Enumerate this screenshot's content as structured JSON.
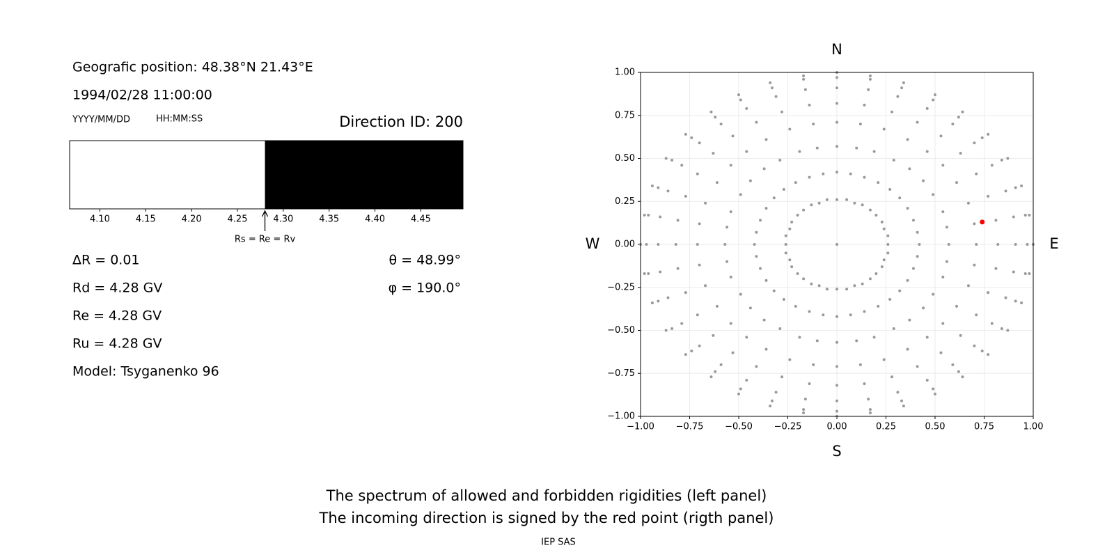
{
  "panel": {
    "position": "Geografic position: 48.38°N 21.43°E",
    "datetime": "1994/02/28 11:00:00",
    "date_format": "YYYY/MM/DD",
    "time_format": "HH:MM:SS",
    "direction_id": "Direction ID: 200",
    "delta_r": "ΔR = 0.01",
    "rd": "Rd = 4.28 GV",
    "re": "Re = 4.28 GV",
    "ru": "Ru = 4.28 GV",
    "model": "Model: Tsyganenko 96",
    "theta": "θ = 48.99°",
    "phi": "φ = 190.0°"
  },
  "chart_data": [
    {
      "type": "spectrum",
      "xlim": [
        4.067,
        4.496
      ],
      "threshold": 4.28,
      "colors": [
        "#ffffff",
        "#000000"
      ],
      "annotation": "Rs = Re = Rv",
      "xticks": [
        {
          "value": 4.1,
          "label": "4.10"
        },
        {
          "value": 4.15,
          "label": "4.15"
        },
        {
          "value": 4.2,
          "label": "4.20"
        },
        {
          "value": 4.25,
          "label": "4.25"
        },
        {
          "value": 4.3,
          "label": "4.30"
        },
        {
          "value": 4.35,
          "label": "4.35"
        },
        {
          "value": 4.4,
          "label": "4.40"
        },
        {
          "value": 4.45,
          "label": "4.45"
        }
      ]
    },
    {
      "type": "scatter",
      "xlim": [
        -1,
        1
      ],
      "ylim": [
        -1,
        1
      ],
      "grid": true,
      "directions": {
        "north": "N",
        "south": "S",
        "west": "W",
        "east": "E"
      },
      "xticks": [
        {
          "value": -1,
          "label": "−1.00"
        },
        {
          "value": -0.75,
          "label": "−0.75"
        },
        {
          "value": -0.5,
          "label": "−0.50"
        },
        {
          "value": -0.25,
          "label": "−0.25"
        },
        {
          "value": 0,
          "label": "0.00"
        },
        {
          "value": 0.25,
          "label": "0.25"
        },
        {
          "value": 0.5,
          "label": "0.50"
        },
        {
          "value": 0.75,
          "label": "0.75"
        },
        {
          "value": 1,
          "label": "1.00"
        }
      ],
      "yticks": [
        {
          "value": -1,
          "label": "−1.00"
        },
        {
          "value": -0.75,
          "label": "−0.75"
        },
        {
          "value": -0.5,
          "label": "−0.50"
        },
        {
          "value": -0.25,
          "label": "−0.25"
        },
        {
          "value": 0,
          "label": "0.00"
        },
        {
          "value": 0.25,
          "label": "0.25"
        },
        {
          "value": 0.5,
          "label": "0.50"
        },
        {
          "value": 0.75,
          "label": "0.75"
        },
        {
          "value": 1,
          "label": "1.00"
        }
      ],
      "series": [
        {
          "color": "#999999",
          "x": [
            0,
            0,
            0.05,
            0.09,
            0.13,
            0.17,
            0.2,
            0.23,
            0.24,
            0.26,
            0.26,
            0.26,
            0.24,
            0.23,
            0.2,
            0.17,
            0.13,
            0.09,
            0.05,
            0,
            -0.05,
            -0.09,
            -0.13,
            -0.17,
            -0.2,
            -0.23,
            -0.24,
            -0.26,
            -0.26,
            -0.26,
            -0.24,
            -0.23,
            -0.2,
            -0.17,
            -0.13,
            -0.09,
            -0.05,
            0,
            0.07,
            0.14,
            0.21,
            0.27,
            0.32,
            0.36,
            0.39,
            0.41,
            0.42,
            0.41,
            0.39,
            0.36,
            0.32,
            0.27,
            0.21,
            0.14,
            0.07,
            0,
            -0.07,
            -0.14,
            -0.21,
            -0.27,
            -0.32,
            -0.36,
            -0.39,
            -0.41,
            -0.42,
            -0.41,
            -0.39,
            -0.36,
            -0.32,
            -0.27,
            -0.21,
            -0.14,
            -0.07,
            0,
            0.1,
            0.19,
            0.29,
            0.37,
            0.44,
            0.49,
            0.54,
            0.56,
            0.57,
            0.56,
            0.54,
            0.49,
            0.44,
            0.37,
            0.29,
            0.19,
            0.1,
            0,
            -0.1,
            -0.19,
            -0.29,
            -0.37,
            -0.44,
            -0.49,
            -0.54,
            -0.56,
            -0.57,
            -0.56,
            -0.54,
            -0.49,
            -0.44,
            -0.37,
            -0.29,
            -0.19,
            -0.1,
            0,
            0.12,
            0.24,
            0.36,
            0.46,
            0.54,
            0.61,
            0.67,
            0.7,
            0.71,
            0.7,
            0.67,
            0.61,
            0.54,
            0.46,
            0.36,
            0.24,
            0.12,
            0,
            -0.12,
            -0.24,
            -0.36,
            -0.46,
            -0.54,
            -0.61,
            -0.67,
            -0.7,
            -0.71,
            -0.7,
            -0.67,
            -0.61,
            -0.54,
            -0.46,
            -0.36,
            -0.24,
            -0.12,
            0,
            0.14,
            0.28,
            0.41,
            0.53,
            0.63,
            0.71,
            0.77,
            0.81,
            0.82,
            0.81,
            0.77,
            0.71,
            0.63,
            0.53,
            0.41,
            0.28,
            0.14,
            0,
            -0.14,
            -0.28,
            -0.41,
            -0.53,
            -0.63,
            -0.71,
            -0.77,
            -0.81,
            -0.82,
            -0.81,
            -0.77,
            -0.71,
            -0.63,
            -0.53,
            -0.41,
            -0.28,
            -0.14,
            0,
            0.16,
            0.31,
            0.46,
            0.59,
            0.7,
            0.79,
            0.86,
            0.9,
            0.91,
            0.9,
            0.86,
            0.79,
            0.7,
            0.59,
            0.46,
            0.31,
            0.16,
            0,
            -0.16,
            -0.31,
            -0.46,
            -0.59,
            -0.7,
            -0.79,
            -0.86,
            -0.9,
            -0.91,
            -0.9,
            -0.86,
            -0.79,
            -0.7,
            -0.59,
            -0.46,
            -0.31,
            -0.16,
            0,
            0.17,
            0.33,
            0.49,
            0.62,
            0.74,
            0.84,
            0.91,
            0.96,
            0.97,
            0.96,
            0.91,
            0.84,
            0.74,
            0.62,
            0.49,
            0.33,
            0.17,
            0,
            -0.17,
            -0.33,
            -0.49,
            -0.62,
            -0.74,
            -0.84,
            -0.91,
            -0.96,
            -0.97,
            -0.96,
            -0.91,
            -0.84,
            -0.74,
            -0.62,
            -0.49,
            -0.33,
            -0.17,
            0,
            0.17,
            0.34,
            0.5,
            0.64,
            0.77,
            0.87,
            0.94,
            0.98,
            1,
            0.98,
            0.94,
            0.87,
            0.77,
            0.64,
            0.5,
            0.34,
            0.17,
            0,
            -0.17,
            -0.34,
            -0.5,
            -0.64,
            -0.77,
            -0.87,
            -0.94,
            -0.98,
            -1,
            -0.98,
            -0.94,
            -0.87,
            -0.77,
            -0.64,
            -0.5,
            -0.34,
            -0.17
          ],
          "values": [
            0,
            0.26,
            0.26,
            0.24,
            0.23,
            0.2,
            0.17,
            0.13,
            0.09,
            0.05,
            0,
            -0.05,
            -0.09,
            -0.13,
            -0.17,
            -0.2,
            -0.23,
            -0.24,
            -0.26,
            -0.26,
            -0.26,
            -0.24,
            -0.23,
            -0.2,
            -0.17,
            -0.13,
            -0.09,
            -0.05,
            0,
            0.05,
            0.09,
            0.13,
            0.17,
            0.2,
            0.23,
            0.24,
            0.26,
            0.42,
            0.41,
            0.39,
            0.36,
            0.32,
            0.27,
            0.21,
            0.14,
            0.07,
            0,
            -0.07,
            -0.14,
            -0.21,
            -0.27,
            -0.32,
            -0.36,
            -0.39,
            -0.41,
            -0.42,
            -0.41,
            -0.39,
            -0.36,
            -0.32,
            -0.27,
            -0.21,
            -0.14,
            -0.07,
            0,
            0.07,
            0.14,
            0.21,
            0.27,
            0.32,
            0.36,
            0.39,
            0.41,
            0.57,
            0.56,
            0.54,
            0.49,
            0.44,
            0.37,
            0.29,
            0.19,
            0.1,
            0,
            -0.1,
            -0.19,
            -0.29,
            -0.37,
            -0.44,
            -0.49,
            -0.54,
            -0.56,
            -0.57,
            -0.56,
            -0.54,
            -0.49,
            -0.44,
            -0.37,
            -0.29,
            -0.19,
            -0.1,
            0,
            0.1,
            0.19,
            0.29,
            0.37,
            0.44,
            0.49,
            0.54,
            0.56,
            0.71,
            0.7,
            0.67,
            0.61,
            0.54,
            0.46,
            0.36,
            0.24,
            0.12,
            0,
            -0.12,
            -0.24,
            -0.36,
            -0.46,
            -0.54,
            -0.61,
            -0.67,
            -0.7,
            -0.71,
            -0.7,
            -0.67,
            -0.61,
            -0.54,
            -0.46,
            -0.36,
            -0.24,
            -0.12,
            0,
            0.12,
            0.24,
            0.36,
            0.46,
            0.54,
            0.61,
            0.67,
            0.7,
            0.82,
            0.81,
            0.77,
            0.71,
            0.63,
            0.53,
            0.41,
            0.28,
            0.14,
            0,
            -0.14,
            -0.28,
            -0.41,
            -0.53,
            -0.63,
            -0.71,
            -0.77,
            -0.81,
            -0.82,
            -0.81,
            -0.77,
            -0.71,
            -0.63,
            -0.53,
            -0.41,
            -0.28,
            -0.14,
            0,
            0.14,
            0.28,
            0.41,
            0.53,
            0.63,
            0.71,
            0.77,
            0.81,
            0.91,
            0.9,
            0.86,
            0.79,
            0.7,
            0.59,
            0.46,
            0.31,
            0.16,
            0,
            -0.16,
            -0.31,
            -0.46,
            -0.59,
            -0.7,
            -0.79,
            -0.86,
            -0.9,
            -0.91,
            -0.9,
            -0.86,
            -0.79,
            -0.7,
            -0.59,
            -0.46,
            -0.31,
            -0.16,
            0,
            0.16,
            0.31,
            0.46,
            0.59,
            0.7,
            0.79,
            0.86,
            0.9,
            0.97,
            0.96,
            0.91,
            0.84,
            0.74,
            0.62,
            0.49,
            0.33,
            0.17,
            0,
            -0.17,
            -0.33,
            -0.49,
            -0.62,
            -0.74,
            -0.84,
            -0.91,
            -0.96,
            -0.97,
            -0.96,
            -0.91,
            -0.84,
            -0.74,
            -0.62,
            -0.49,
            -0.33,
            -0.17,
            0,
            0.17,
            0.33,
            0.49,
            0.62,
            0.74,
            0.84,
            0.91,
            0.96,
            1,
            0.98,
            0.94,
            0.87,
            0.77,
            0.64,
            0.5,
            0.34,
            0.17,
            0,
            -0.17,
            -0.34,
            -0.5,
            -0.64,
            -0.77,
            -0.87,
            -0.94,
            -0.98,
            -1,
            -0.98,
            -0.94,
            -0.87,
            -0.77,
            -0.64,
            -0.5,
            -0.34,
            -0.17,
            0,
            0.17,
            0.34,
            0.5,
            0.64,
            0.77,
            0.87,
            0.94,
            0.98
          ]
        },
        {
          "color": "#ff0000",
          "x": [
            0.74
          ],
          "values": [
            0.13
          ]
        }
      ]
    }
  ],
  "caption": [
    "The spectrum of allowed and forbidden rigidities (left panel)",
    "The incoming direction is signed by the red point (rigth panel)"
  ],
  "footer": "IEP SAS"
}
